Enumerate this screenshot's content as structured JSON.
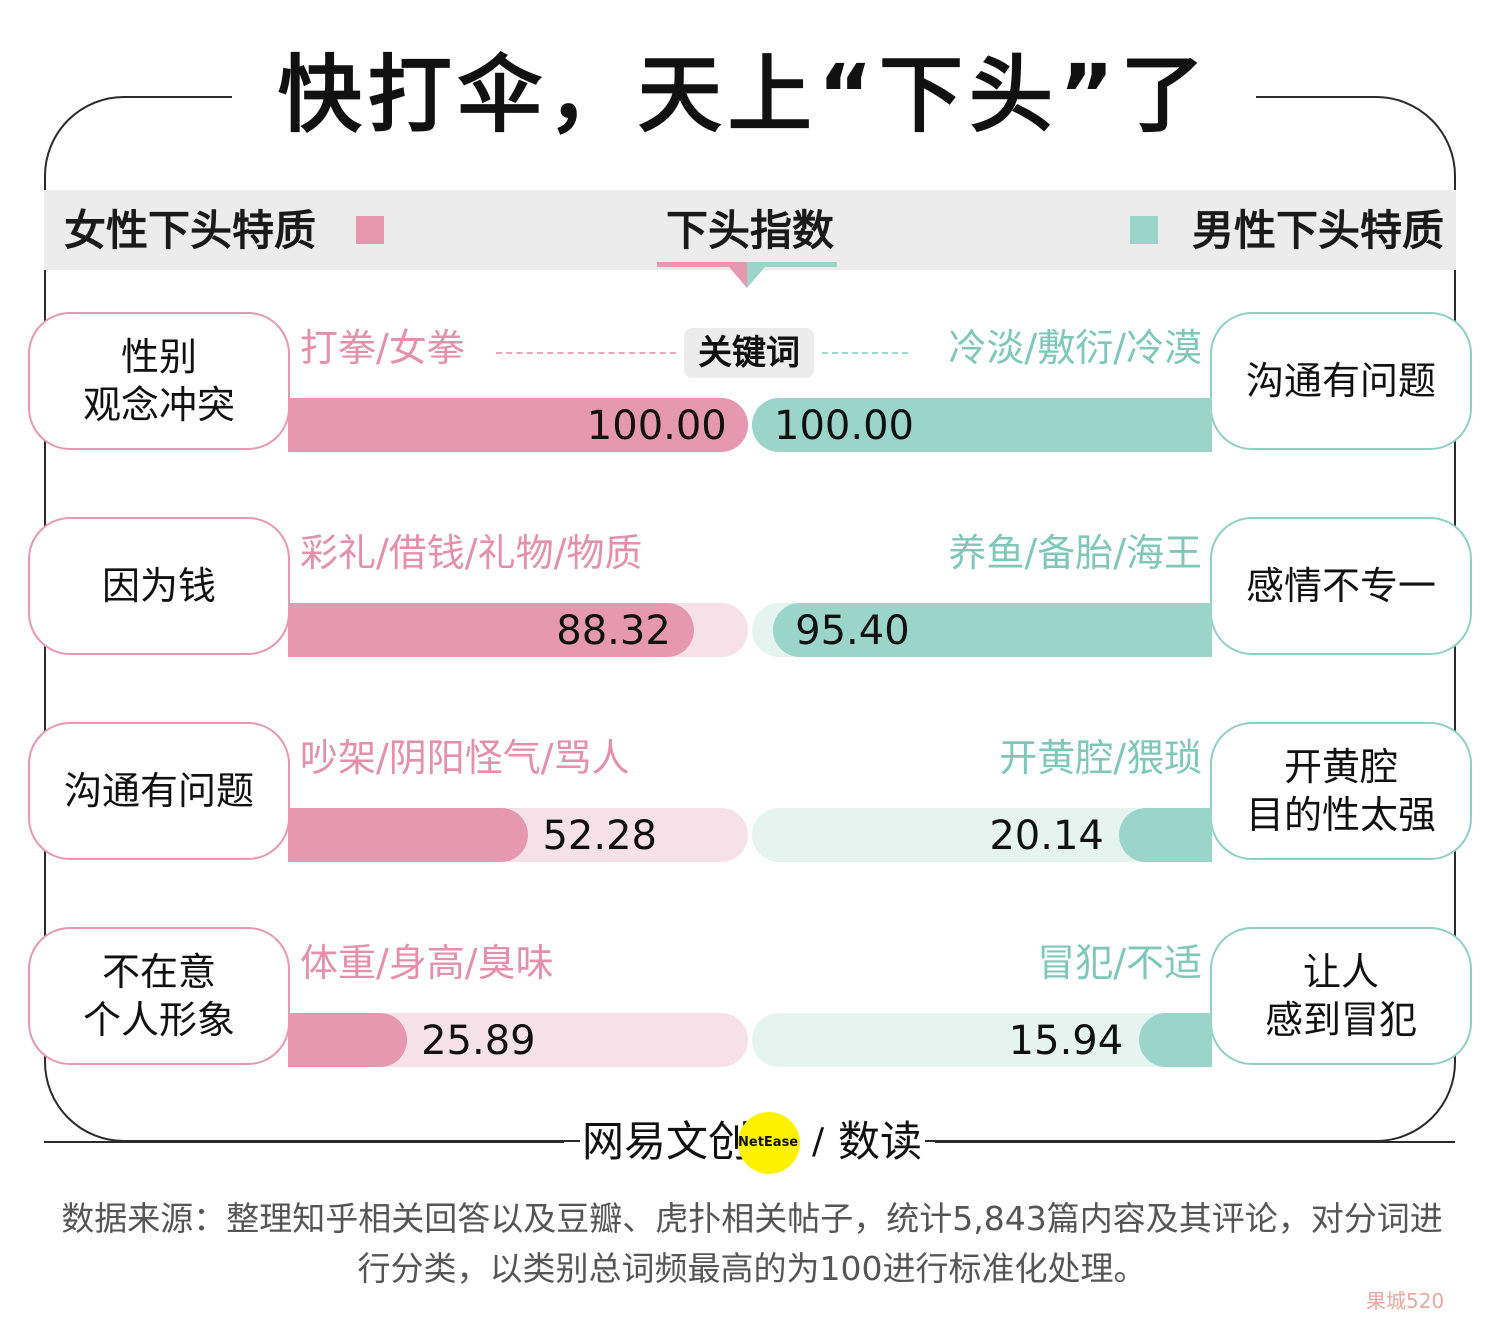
{
  "title": "快打伞，天上“下头”了",
  "header": {
    "left": "女性下头特质",
    "center": "下头指数",
    "right": "男性下头特质",
    "keyword_label": "关键词"
  },
  "colors": {
    "female": "#e698b0",
    "male": "#9bd4c8",
    "female_light": "#f7e1e8",
    "male_light": "#e6f4f0"
  },
  "chart_data": {
    "type": "bar",
    "title": "快打伞，天上“下头”了",
    "xlabel": "",
    "ylabel": "下头指数",
    "ylim": [
      0,
      100
    ],
    "series": [
      {
        "name": "女性下头特质",
        "values": [
          100.0,
          88.32,
          52.28,
          25.89
        ]
      },
      {
        "name": "男性下头特质",
        "values": [
          100.0,
          95.4,
          20.14,
          15.94
        ]
      }
    ],
    "rows": [
      {
        "left_category": "性别\n观念冲突",
        "left_keywords": "打拳/女拳",
        "left_value": 100.0,
        "left_label": "100.00",
        "right_category": "沟通有问题",
        "right_keywords": "冷淡/敷衍/冷漠",
        "right_value": 100.0,
        "right_label": "100.00"
      },
      {
        "left_category": "因为钱",
        "left_keywords": "彩礼/借钱/礼物/物质",
        "left_value": 88.32,
        "left_label": "88.32",
        "right_category": "感情不专一",
        "right_keywords": "养鱼/备胎/海王",
        "right_value": 95.4,
        "right_label": "95.40"
      },
      {
        "left_category": "沟通有问题",
        "left_keywords": "吵架/阴阳怪气/骂人",
        "left_value": 52.28,
        "left_label": "52.28",
        "right_category": "开黄腔\n目的性太强",
        "right_keywords": "开黄腔/猥琐",
        "right_value": 20.14,
        "right_label": "20.14"
      },
      {
        "left_category": "不在意\n个人形象",
        "left_keywords": "体重/身高/臭味",
        "left_value": 25.89,
        "left_label": "25.89",
        "right_category": "让人\n感到冒犯",
        "right_keywords": "冒犯/不适",
        "right_value": 15.94,
        "right_label": "15.94"
      }
    ]
  },
  "footer": {
    "brand_left": "网易文创",
    "brand_badge": "NetEase",
    "brand_slash": "/",
    "brand_right": "数读",
    "source": "数据来源：整理知乎相关回答以及豆瓣、虎扑相关帖子，统计5,843篇内容及其评论，对分词进行分类，以类别总词频最高的为100进行标准化处理。",
    "watermark": "果城520"
  }
}
